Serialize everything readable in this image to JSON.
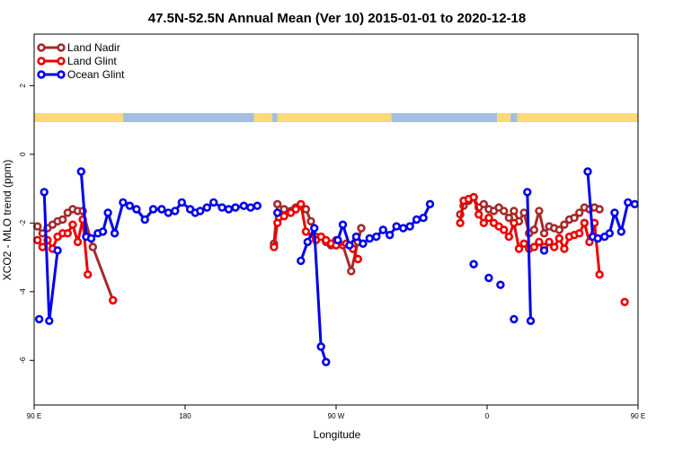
{
  "chart_data": {
    "type": "line",
    "title": "47.5N-52.5N Annual Mean (Ver 10)   2015-01-01 to 2020-12-18",
    "xlabel": "Longitude",
    "ylabel": "XCO2 - MLO trend (ppm)",
    "xlim": [
      90,
      450
    ],
    "ylim": [
      -7.3,
      3.5
    ],
    "x_ticks": [
      {
        "value": 90,
        "label": "90 E"
      },
      {
        "value": 180,
        "label": "180"
      },
      {
        "value": 270,
        "label": "90 W"
      },
      {
        "value": 360,
        "label": "0"
      },
      {
        "value": 450,
        "label": "90 E"
      }
    ],
    "y_ticks": [
      {
        "value": 2,
        "label": "2"
      },
      {
        "value": 0,
        "label": "0"
      },
      {
        "value": -2,
        "label": "-2"
      },
      {
        "value": -4,
        "label": "-4"
      },
      {
        "value": -6,
        "label": "-6"
      }
    ],
    "grid": false,
    "legend_position": "top-left",
    "land_sea_band": {
      "land_color": "#fbd977",
      "ocean_color": "#a3bedf",
      "segments": [
        {
          "from": 90,
          "to": 143,
          "kind": "land"
        },
        {
          "from": 143,
          "to": 221,
          "kind": "ocean"
        },
        {
          "from": 221,
          "to": 232,
          "kind": "land"
        },
        {
          "from": 232,
          "to": 235,
          "kind": "ocean"
        },
        {
          "from": 235,
          "to": 303,
          "kind": "land"
        },
        {
          "from": 303,
          "to": 366,
          "kind": "ocean"
        },
        {
          "from": 366,
          "to": 374,
          "kind": "land"
        },
        {
          "from": 374,
          "to": 378,
          "kind": "ocean"
        },
        {
          "from": 378,
          "to": 450,
          "kind": "land"
        }
      ]
    },
    "series": [
      {
        "name": "Land Nadir",
        "color": "#a52a2a",
        "segments": [
          [
            [
              92,
              -2.1
            ],
            [
              95,
              -2.3
            ],
            [
              98,
              -2.15
            ],
            [
              101,
              -2.05
            ],
            [
              104,
              -1.95
            ],
            [
              107,
              -1.9
            ],
            [
              110,
              -1.7
            ],
            [
              113,
              -1.6
            ],
            [
              116,
              -1.65
            ],
            [
              119,
              -1.65
            ],
            [
              125,
              -2.7
            ],
            [
              137,
              -4.25
            ]
          ],
          [
            [
              233,
              -2.6
            ],
            [
              235,
              -1.45
            ],
            [
              239,
              -1.6
            ],
            [
              243,
              -1.65
            ],
            [
              246,
              -1.55
            ],
            [
              249,
              -1.5
            ],
            [
              252,
              -1.6
            ],
            [
              255,
              -1.95
            ],
            [
              258,
              -2.4
            ],
            [
              264,
              -2.55
            ],
            [
              267,
              -2.65
            ],
            [
              270,
              -2.5
            ],
            [
              274,
              -2.65
            ],
            [
              279,
              -3.4
            ],
            [
              283,
              -2.55
            ],
            [
              285,
              -2.15
            ]
          ],
          [
            [
              344,
              -1.75
            ],
            [
              346,
              -1.5
            ],
            [
              349,
              -1.35
            ],
            [
              352,
              -1.25
            ],
            [
              355,
              -1.55
            ],
            [
              358,
              -1.45
            ],
            [
              361,
              -1.6
            ],
            [
              364,
              -1.65
            ],
            [
              367,
              -1.55
            ],
            [
              370,
              -1.65
            ],
            [
              373,
              -1.85
            ],
            [
              376,
              -1.65
            ],
            [
              379,
              -1.95
            ],
            [
              382,
              -1.7
            ],
            [
              385,
              -2.3
            ],
            [
              388,
              -2.2
            ],
            [
              391,
              -1.65
            ],
            [
              394,
              -2.3
            ],
            [
              397,
              -2.1
            ],
            [
              400,
              -2.15
            ],
            [
              403,
              -2.2
            ],
            [
              406,
              -2.05
            ],
            [
              409,
              -1.9
            ],
            [
              412,
              -1.85
            ],
            [
              415,
              -1.7
            ],
            [
              418,
              -1.55
            ],
            [
              421,
              -1.6
            ],
            [
              424,
              -1.55
            ],
            [
              427,
              -1.6
            ]
          ],
          [
            [
              452,
              -1.55
            ]
          ]
        ]
      },
      {
        "name": "Land Glint",
        "color": "#ee0000",
        "segments": [
          [
            [
              92,
              -2.5
            ],
            [
              95,
              -2.7
            ],
            [
              98,
              -2.5
            ],
            [
              101,
              -2.75
            ],
            [
              104,
              -2.4
            ],
            [
              107,
              -2.3
            ],
            [
              110,
              -2.3
            ],
            [
              113,
              -2.05
            ],
            [
              116,
              -2.55
            ],
            [
              119,
              -1.9
            ],
            [
              122,
              -3.5
            ]
          ],
          [
            [
              137,
              -4.25
            ]
          ],
          [
            [
              233,
              -2.7
            ],
            [
              235,
              -2.0
            ],
            [
              239,
              -1.8
            ],
            [
              243,
              -1.7
            ],
            [
              246,
              -1.6
            ],
            [
              249,
              -1.45
            ],
            [
              252,
              -2.25
            ],
            [
              258,
              -2.5
            ],
            [
              261,
              -2.4
            ],
            [
              264,
              -2.5
            ],
            [
              267,
              -2.6
            ],
            [
              270,
              -2.65
            ],
            [
              276,
              -2.6
            ],
            [
              280,
              -2.75
            ],
            [
              283,
              -3.05
            ]
          ],
          [
            [
              344,
              -2.0
            ],
            [
              346,
              -1.35
            ],
            [
              349,
              -1.3
            ],
            [
              352,
              -1.25
            ],
            [
              355,
              -1.75
            ],
            [
              358,
              -2.0
            ],
            [
              361,
              -1.85
            ],
            [
              364,
              -2.0
            ],
            [
              367,
              -2.1
            ],
            [
              370,
              -2.2
            ],
            [
              373,
              -2.4
            ],
            [
              376,
              -2.0
            ],
            [
              379,
              -2.75
            ],
            [
              382,
              -2.6
            ],
            [
              385,
              -2.75
            ],
            [
              388,
              -2.7
            ],
            [
              391,
              -2.55
            ],
            [
              394,
              -2.7
            ],
            [
              397,
              -2.55
            ],
            [
              400,
              -2.7
            ],
            [
              403,
              -2.45
            ],
            [
              406,
              -2.75
            ],
            [
              409,
              -2.4
            ],
            [
              412,
              -2.35
            ],
            [
              415,
              -2.3
            ],
            [
              418,
              -2.0
            ],
            [
              421,
              -2.55
            ],
            [
              424,
              -2.0
            ],
            [
              427,
              -3.5
            ]
          ],
          [
            [
              442,
              -4.3
            ]
          ]
        ]
      },
      {
        "name": "Ocean Glint",
        "color": "#0000ee",
        "segments": [
          [
            [
              93,
              -4.8
            ]
          ],
          [
            [
              96,
              -1.1
            ],
            [
              99,
              -4.85
            ],
            [
              104,
              -2.8
            ]
          ],
          [
            [
              118,
              -0.5
            ],
            [
              121,
              -2.4
            ],
            [
              124,
              -2.45
            ],
            [
              128,
              -2.3
            ],
            [
              131,
              -2.25
            ],
            [
              134,
              -1.7
            ],
            [
              138,
              -2.3
            ],
            [
              143,
              -1.4
            ],
            [
              147,
              -1.5
            ],
            [
              151,
              -1.6
            ],
            [
              156,
              -1.9
            ],
            [
              161,
              -1.6
            ],
            [
              166,
              -1.6
            ],
            [
              170,
              -1.7
            ],
            [
              174,
              -1.65
            ],
            [
              178,
              -1.4
            ],
            [
              183,
              -1.6
            ],
            [
              186,
              -1.7
            ],
            [
              189,
              -1.65
            ],
            [
              193,
              -1.55
            ],
            [
              197,
              -1.4
            ],
            [
              202,
              -1.55
            ],
            [
              206,
              -1.6
            ],
            [
              210,
              -1.55
            ],
            [
              215,
              -1.5
            ],
            [
              219,
              -1.55
            ],
            [
              223,
              -1.5
            ]
          ],
          [
            [
              235,
              -1.7
            ]
          ],
          [
            [
              249,
              -3.1
            ],
            [
              253,
              -2.55
            ],
            [
              257,
              -2.15
            ],
            [
              261,
              -5.6
            ],
            [
              264,
              -6.05
            ]
          ],
          [
            [
              271,
              -2.5
            ],
            [
              274,
              -2.05
            ],
            [
              278,
              -2.65
            ],
            [
              282,
              -2.4
            ],
            [
              286,
              -2.6
            ],
            [
              290,
              -2.45
            ],
            [
              294,
              -2.4
            ],
            [
              298,
              -2.2
            ],
            [
              302,
              -2.35
            ],
            [
              306,
              -2.1
            ],
            [
              310,
              -2.15
            ],
            [
              314,
              -2.1
            ],
            [
              318,
              -1.9
            ],
            [
              322,
              -1.85
            ],
            [
              326,
              -1.45
            ]
          ],
          [
            [
              352,
              -3.2
            ]
          ],
          [
            [
              361,
              -3.6
            ]
          ],
          [
            [
              368,
              -3.8
            ]
          ],
          [
            [
              376,
              -4.8
            ]
          ],
          [
            [
              384,
              -1.1
            ],
            [
              386,
              -4.85
            ]
          ],
          [
            [
              394,
              -2.8
            ]
          ],
          [
            [
              420,
              -0.5
            ],
            [
              423,
              -2.4
            ],
            [
              426,
              -2.45
            ],
            [
              430,
              -2.4
            ],
            [
              433,
              -2.3
            ],
            [
              436,
              -1.7
            ],
            [
              440,
              -2.25
            ],
            [
              444,
              -1.4
            ],
            [
              448,
              -1.45
            ]
          ]
        ]
      }
    ]
  }
}
